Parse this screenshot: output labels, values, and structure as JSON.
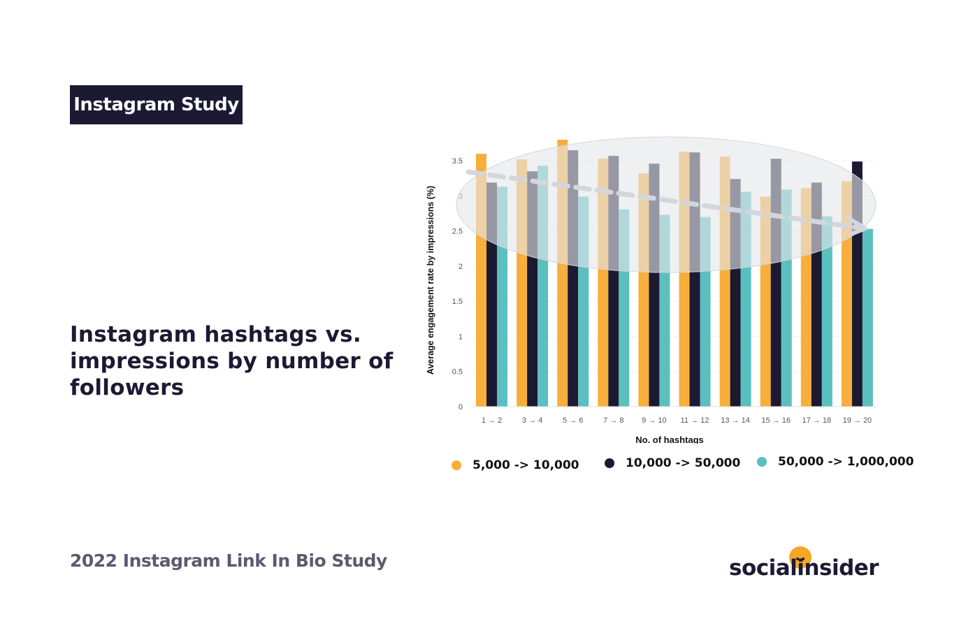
{
  "badge": {
    "label": "Instagram Study"
  },
  "heading": "Instagram hashtags vs. impressions by number of followers",
  "footer": {
    "title": "2022 Instagram Link In Bio Study"
  },
  "logo": {
    "text": "socialinsider",
    "accent_color": "#f5a623"
  },
  "chart_data": {
    "type": "bar",
    "title": "",
    "xlabel": "No. of hashtags",
    "ylabel": "Average engagement rate by impressions (%)",
    "ylim": [
      0,
      3.8
    ],
    "yticks": [
      "0",
      "0.5",
      "1",
      "1.5",
      "2",
      "2.5",
      "3",
      "3.5"
    ],
    "categories": [
      "1 → 2",
      "3 → 4",
      "5 → 6",
      "7 → 8",
      "9 → 10",
      "11 → 12",
      "13 → 14",
      "15 → 16",
      "17 → 18",
      "19 → 20"
    ],
    "series": [
      {
        "name": "5,000 -> 10,000",
        "color": "#f8ae3a",
        "values": [
          3.6,
          3.52,
          3.8,
          3.53,
          3.32,
          3.63,
          3.56,
          2.99,
          3.11,
          3.21
        ]
      },
      {
        "name": "10,000 -> 50,000",
        "color": "#1c1a33",
        "values": [
          3.19,
          3.35,
          3.65,
          3.57,
          3.46,
          3.62,
          3.24,
          3.53,
          3.19,
          3.49
        ]
      },
      {
        "name": "50,000 -> 1,000,000",
        "color": "#5bbfbf",
        "values": [
          3.13,
          3.43,
          2.99,
          2.81,
          2.73,
          2.7,
          3.06,
          3.09,
          2.71,
          2.53
        ]
      }
    ],
    "grid": true,
    "annotation": "decreasing trend arrow over shaded ellipse"
  }
}
